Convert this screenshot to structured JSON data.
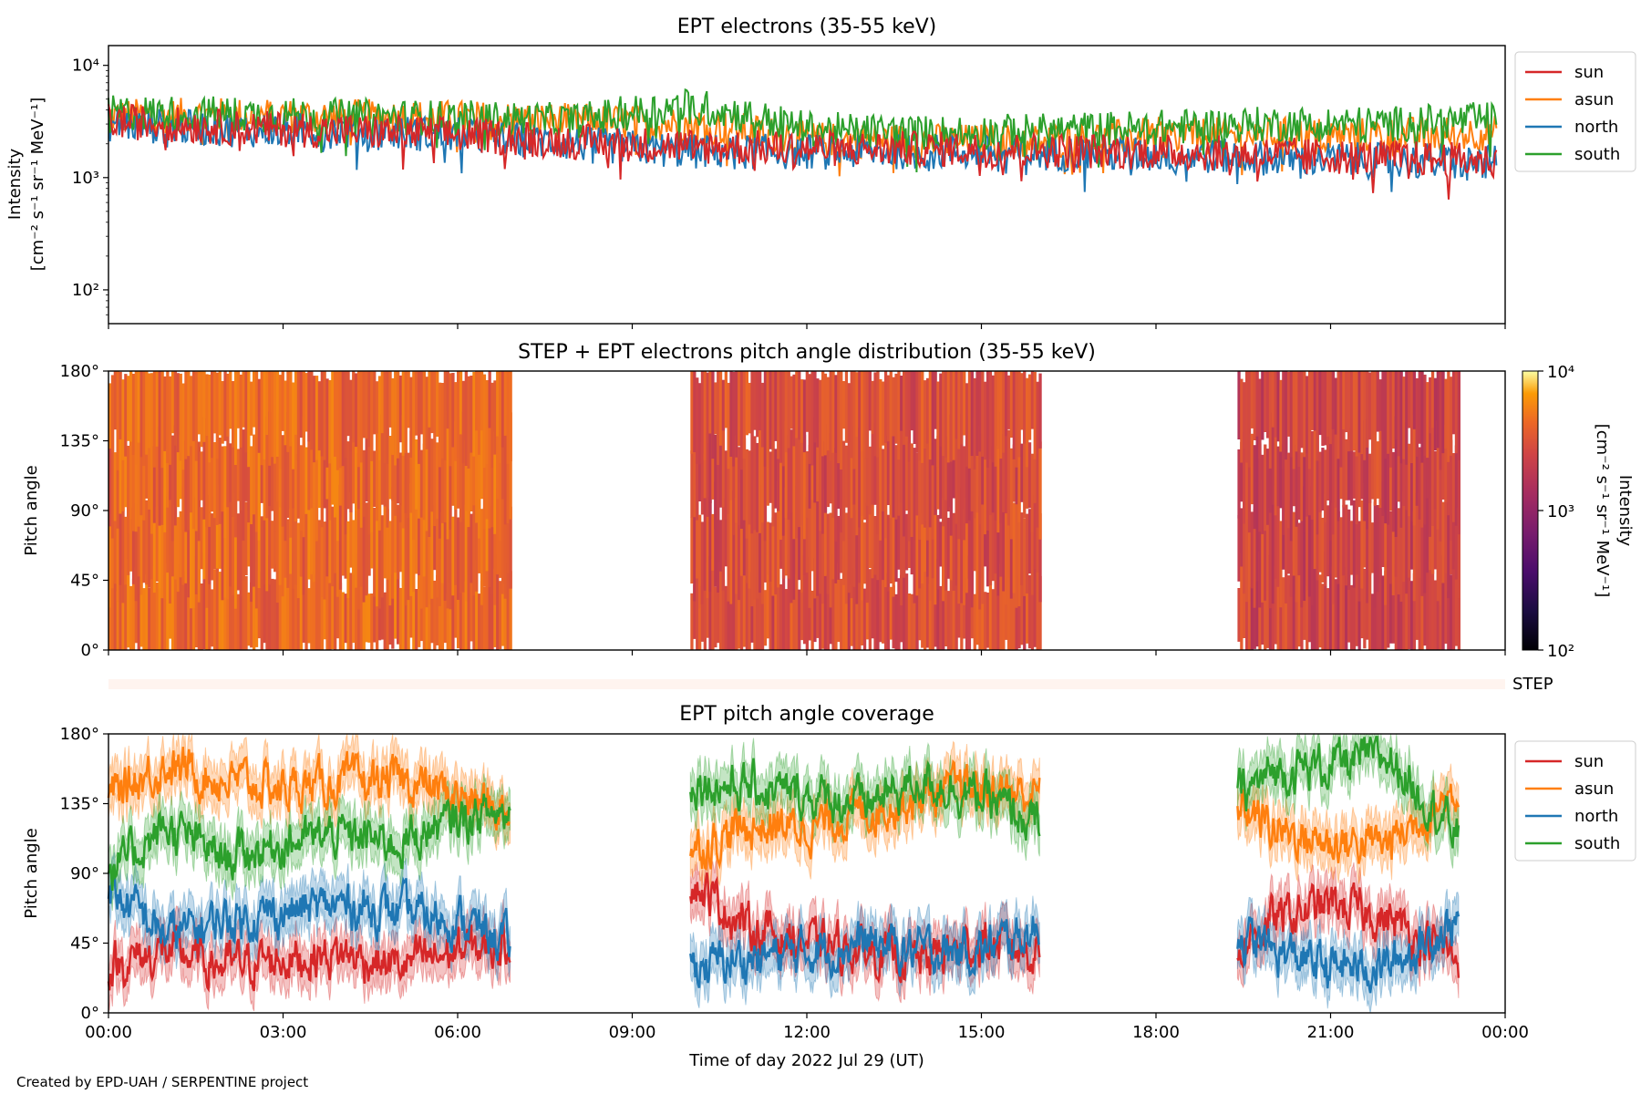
{
  "credit": "Created by EPD-UAH / SERPENTINE project",
  "xlabel": "Time of day 2022 Jul 29 (UT)",
  "chart_data": [
    {
      "type": "line",
      "title": "EPT electrons (35-55 keV)",
      "ylabel": "Intensity",
      "ylabel_units": "[cm⁻² s⁻¹ sr⁻¹ MeV⁻¹]",
      "yscale": "log",
      "ylim": [
        50,
        15000
      ],
      "yticks": [
        {
          "value": 100,
          "label": "10²"
        },
        {
          "value": 1000,
          "label": "10³"
        },
        {
          "value": 10000,
          "label": "10⁴"
        }
      ],
      "x_range_hours": [
        0,
        24
      ],
      "legend_position": "outside-right",
      "series": [
        {
          "name": "sun",
          "color": "#d62728",
          "hours": [
            0,
            2,
            4,
            6,
            8,
            10,
            12,
            14,
            16,
            18,
            20,
            22,
            23.8
          ],
          "values": [
            3200,
            2800,
            2600,
            2400,
            2100,
            1900,
            1800,
            1800,
            1750,
            1700,
            1600,
            1500,
            1400
          ]
        },
        {
          "name": "asun",
          "color": "#ff7f0e",
          "hours": [
            0,
            2,
            4,
            6,
            8,
            10,
            12,
            14,
            16,
            18,
            20,
            22,
            23.8
          ],
          "values": [
            3500,
            3600,
            3500,
            3400,
            3200,
            3000,
            2200,
            2100,
            2100,
            2400,
            2400,
            2400,
            2500
          ]
        },
        {
          "name": "north",
          "color": "#1f77b4",
          "hours": [
            0,
            2,
            4,
            6,
            8,
            10,
            12,
            14,
            16,
            18,
            20,
            22,
            23.8
          ],
          "values": [
            3000,
            2700,
            2600,
            2400,
            2000,
            1700,
            1700,
            1700,
            1650,
            1600,
            1500,
            1400,
            1350
          ]
        },
        {
          "name": "south",
          "color": "#2ca02c",
          "hours": [
            0,
            2,
            4,
            6,
            8,
            10,
            12,
            14,
            16,
            18,
            20,
            22,
            23.8
          ],
          "values": [
            3800,
            3700,
            3500,
            3400,
            3200,
            4400,
            2700,
            2500,
            2600,
            2800,
            3000,
            3000,
            3300
          ]
        }
      ]
    },
    {
      "type": "heatmap",
      "title": "STEP + EPT electrons pitch angle distribution (35-55 keV)",
      "ylabel": "Pitch angle",
      "ylim": [
        0,
        180
      ],
      "yticks": [
        "0°",
        "45°",
        "90°",
        "135°",
        "180°"
      ],
      "x_range_hours": [
        0,
        24
      ],
      "colorbar": {
        "label": "Intensity",
        "units": "[cm⁻² s⁻¹ sr⁻¹ MeV⁻¹]",
        "scale": "log",
        "range": [
          100,
          10000
        ],
        "ticks": [
          "10²",
          "10³",
          "10⁴"
        ],
        "colormap": "inferno"
      },
      "data_blocks": [
        {
          "start_hour": 0.0,
          "end_hour": 6.9,
          "typical_intensity": 3000
        },
        {
          "start_hour": 10.0,
          "end_hour": 16.0,
          "typical_intensity": 2100
        },
        {
          "start_hour": 19.4,
          "end_hour": 23.2,
          "typical_intensity": 1800
        }
      ]
    },
    {
      "type": "bar",
      "label": "STEP",
      "note": "thin STEP availability strip"
    },
    {
      "type": "line",
      "title": "EPT pitch angle coverage",
      "ylabel": "Pitch angle",
      "ylim": [
        0,
        180
      ],
      "yticks": [
        "0°",
        "45°",
        "90°",
        "135°",
        "180°"
      ],
      "xticks": [
        "00:00",
        "03:00",
        "06:00",
        "09:00",
        "12:00",
        "15:00",
        "18:00",
        "21:00",
        "00:00"
      ],
      "x_range_hours": [
        0,
        24
      ],
      "legend_position": "outside-right",
      "data_blocks": [
        [
          0.0,
          6.9
        ],
        [
          10.0,
          16.0
        ],
        [
          19.4,
          23.2
        ]
      ],
      "series": [
        {
          "name": "sun",
          "color": "#d62728",
          "hours": [
            0,
            1,
            2,
            3,
            4,
            5,
            6,
            6.9,
            10,
            11,
            12,
            13,
            14,
            15,
            16,
            19.4,
            20,
            21,
            22,
            23.2
          ],
          "values": [
            30,
            40,
            30,
            35,
            38,
            30,
            40,
            45,
            85,
            55,
            45,
            40,
            35,
            45,
            40,
            40,
            60,
            70,
            60,
            35
          ]
        },
        {
          "name": "asun",
          "color": "#ff7f0e",
          "hours": [
            0,
            1,
            2,
            3,
            4,
            5,
            6,
            6.9,
            10,
            11,
            12,
            13,
            14,
            15,
            16,
            19.4,
            20,
            21,
            22,
            23.2
          ],
          "values": [
            140,
            160,
            150,
            145,
            148,
            150,
            140,
            130,
            105,
            120,
            120,
            130,
            140,
            145,
            140,
            135,
            120,
            110,
            110,
            145
          ]
        },
        {
          "name": "north",
          "color": "#1f77b4",
          "hours": [
            0,
            1,
            2,
            3,
            4,
            5,
            6,
            6.9,
            10,
            11,
            12,
            13,
            14,
            15,
            16,
            19.4,
            20,
            21,
            22,
            23.2
          ],
          "values": [
            80,
            50,
            60,
            65,
            70,
            65,
            60,
            45,
            30,
            35,
            40,
            45,
            40,
            40,
            55,
            50,
            40,
            30,
            30,
            60
          ]
        },
        {
          "name": "south",
          "color": "#2ca02c",
          "hours": [
            0,
            1,
            2,
            3,
            4,
            5,
            6,
            6.9,
            10,
            11,
            12,
            13,
            14,
            15,
            16,
            19.4,
            20,
            21,
            22,
            23.2
          ],
          "values": [
            90,
            120,
            100,
            110,
            115,
            110,
            125,
            130,
            150,
            145,
            140,
            135,
            150,
            140,
            120,
            140,
            155,
            160,
            165,
            115
          ]
        }
      ]
    }
  ]
}
